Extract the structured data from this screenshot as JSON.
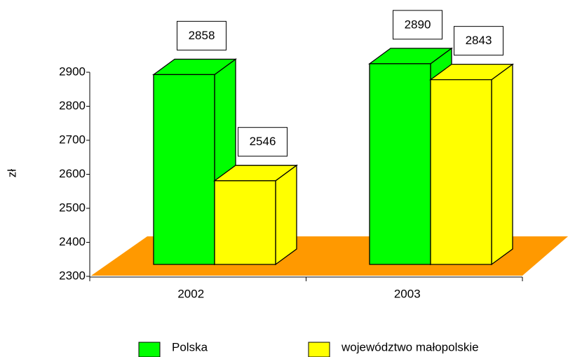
{
  "chart_data": {
    "type": "bar3d",
    "y_label": "zł",
    "categories": [
      "2002",
      "2003"
    ],
    "series": [
      {
        "name": "Polska",
        "color": "#00ff00",
        "values": [
          2858,
          2890
        ]
      },
      {
        "name": "województwo małopolskie",
        "color": "#ffff00",
        "values": [
          2546,
          2843
        ]
      }
    ],
    "floor_color": "#ff9900",
    "ylim": [
      2300,
      2900
    ],
    "yticks": [
      2300,
      2400,
      2500,
      2600,
      2700,
      2800,
      2900
    ],
    "legend": "bottom"
  }
}
